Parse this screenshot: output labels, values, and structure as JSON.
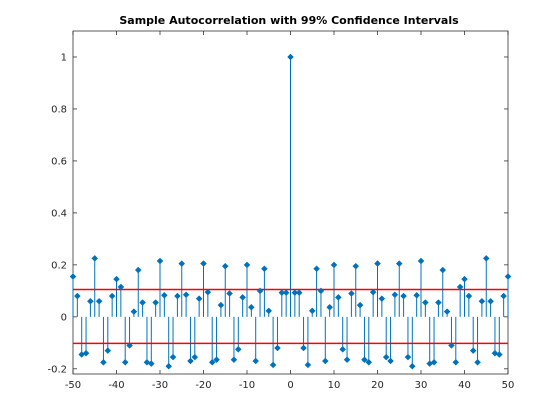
{
  "chart_data": {
    "type": "stem",
    "title": "Sample Autocorrelation with 99% Confidence Intervals",
    "xlabel": "",
    "ylabel": "",
    "xlim": [
      -50,
      50
    ],
    "ylim": [
      -0.22,
      1.1
    ],
    "xticks": [
      -50,
      -40,
      -30,
      -20,
      -10,
      0,
      10,
      20,
      30,
      40,
      50
    ],
    "xtick_labels": [
      "-50",
      "-40",
      "-30",
      "-20",
      "-10",
      "0",
      "10",
      "20",
      "30",
      "40",
      "50"
    ],
    "yticks": [
      -0.2,
      0,
      0.2,
      0.4,
      0.6,
      0.8,
      1
    ],
    "ytick_labels": [
      "-0.2",
      "0",
      "0.2",
      "0.4",
      "0.6",
      "0.8",
      "1"
    ],
    "grid": false,
    "confidence_bounds": [
      0.105,
      -0.102
    ],
    "colors": {
      "stem": "#0072BD",
      "bounds": "#FF0000",
      "axes": "#262626"
    },
    "x": [
      0,
      1,
      2,
      3,
      4,
      5,
      6,
      7,
      8,
      9,
      10,
      11,
      12,
      13,
      14,
      15,
      16,
      17,
      18,
      19,
      20,
      21,
      22,
      23,
      24,
      25,
      26,
      27,
      28,
      29,
      30,
      31,
      32,
      33,
      34,
      35,
      36,
      37,
      38,
      39,
      40,
      41,
      42,
      43,
      44,
      45,
      46,
      47,
      48,
      49,
      50
    ],
    "values": [
      1.0,
      0.093,
      0.093,
      -0.12,
      -0.185,
      0.023,
      0.185,
      0.1,
      -0.17,
      0.037,
      0.2,
      0.075,
      -0.125,
      -0.165,
      0.09,
      0.195,
      0.045,
      -0.165,
      -0.175,
      0.095,
      0.205,
      0.07,
      -0.155,
      -0.17,
      0.085,
      0.205,
      0.08,
      -0.155,
      -0.19,
      0.083,
      0.215,
      0.055,
      -0.18,
      -0.175,
      0.055,
      0.18,
      0.02,
      -0.11,
      -0.175,
      0.115,
      0.145,
      0.08,
      -0.13,
      -0.175,
      0.06,
      0.225,
      0.06,
      -0.14,
      -0.145,
      0.08,
      0.155
    ],
    "symmetric_about_zero": true
  }
}
